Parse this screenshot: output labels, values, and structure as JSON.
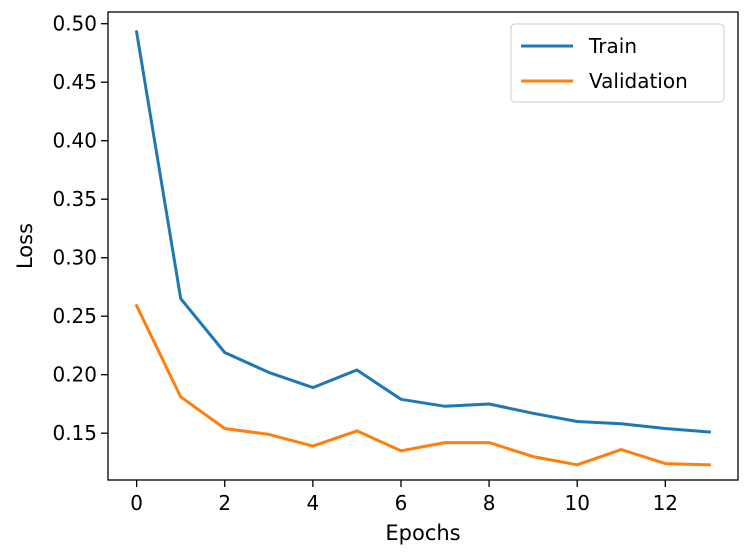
{
  "chart_data": {
    "type": "line",
    "title": "",
    "xlabel": "Epochs",
    "ylabel": "Loss",
    "xlim": [
      -0.65,
      13.65
    ],
    "ylim": [
      0.11,
      0.51
    ],
    "xticks": [
      0,
      2,
      4,
      6,
      8,
      10,
      12
    ],
    "yticks": [
      0.15,
      0.2,
      0.25,
      0.3,
      0.35,
      0.4,
      0.45,
      0.5
    ],
    "x": [
      0,
      1,
      2,
      3,
      4,
      5,
      6,
      7,
      8,
      9,
      10,
      11,
      12,
      13
    ],
    "series": [
      {
        "name": "Train",
        "color": "#1f77b4",
        "values": [
          0.493,
          0.265,
          0.219,
          0.202,
          0.189,
          0.204,
          0.179,
          0.173,
          0.175,
          0.167,
          0.16,
          0.158,
          0.154,
          0.151
        ]
      },
      {
        "name": "Validation",
        "color": "#ff7f0e",
        "values": [
          0.259,
          0.181,
          0.154,
          0.149,
          0.139,
          0.152,
          0.135,
          0.142,
          0.142,
          0.13,
          0.123,
          0.136,
          0.124,
          0.123
        ]
      }
    ],
    "legend_position": "top-right",
    "grid": false
  }
}
